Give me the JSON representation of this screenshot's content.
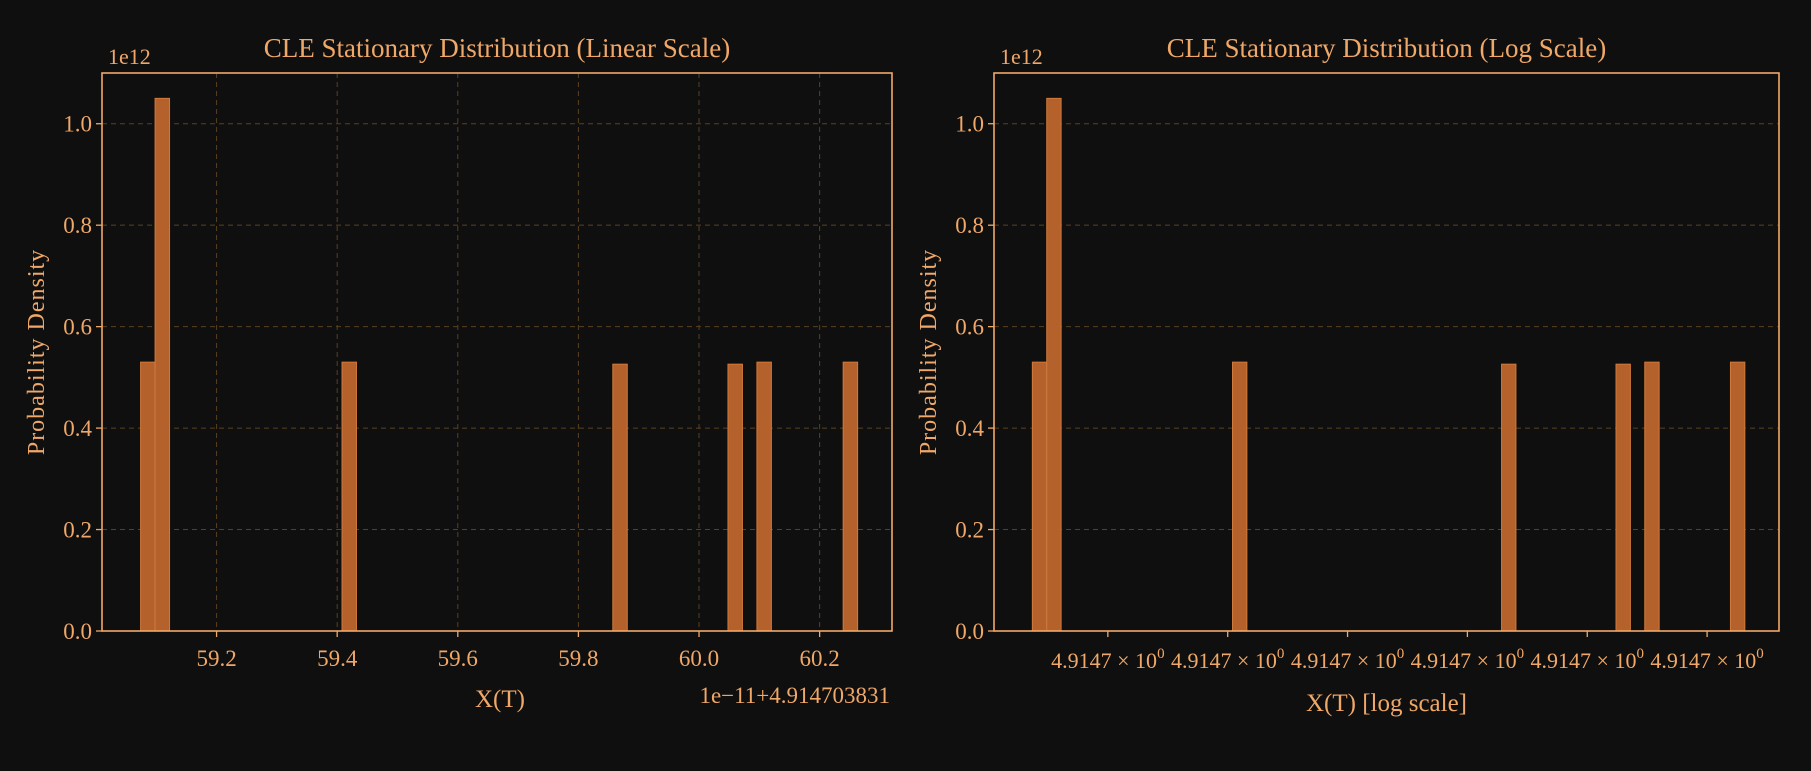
{
  "theme": {
    "background": "#0f0f0f",
    "text": "#f0a868",
    "axis": "#f0a868",
    "grid": "#5a4020",
    "bar_fill": "#b5612c",
    "bar_edge": "#cf7a3c"
  },
  "chart_data": [
    {
      "type": "bar",
      "title": "CLE Stationary Distribution (Linear Scale)",
      "xlabel": "X(T)",
      "ylabel": "Probability Density",
      "y_multiplier_label": "1e12",
      "x_offset_label": "1e−11+4.914703831",
      "xlim": [
        59.01,
        60.32
      ],
      "ylim": [
        0,
        1.1
      ],
      "x_ticks": [
        59.2,
        59.4,
        59.6,
        59.8,
        60.0,
        60.2
      ],
      "x_tick_labels": [
        "59.2",
        "59.4",
        "59.6",
        "59.8",
        "60.0",
        "60.2"
      ],
      "y_ticks": [
        0.0,
        0.2,
        0.4,
        0.6,
        0.8,
        1.0
      ],
      "y_tick_labels": [
        "0.0",
        "0.2",
        "0.4",
        "0.6",
        "0.8",
        "1.0"
      ],
      "grid": true,
      "bars": [
        {
          "x0": 59.074,
          "x1": 59.098,
          "value": 0.53
        },
        {
          "x0": 59.098,
          "x1": 59.122,
          "value": 1.05
        },
        {
          "x0": 59.408,
          "x1": 59.432,
          "value": 0.53
        },
        {
          "x0": 59.857,
          "x1": 59.881,
          "value": 0.526
        },
        {
          "x0": 60.048,
          "x1": 60.072,
          "value": 0.526
        },
        {
          "x0": 60.096,
          "x1": 60.12,
          "value": 0.53
        },
        {
          "x0": 60.239,
          "x1": 60.263,
          "value": 0.53
        }
      ]
    },
    {
      "type": "bar",
      "title": "CLE Stationary Distribution (Log Scale)",
      "xlabel": "X(T) [log scale]",
      "ylabel": "Probability Density",
      "y_multiplier_label": "1e12",
      "x_scale": "log",
      "xlim": [
        59.01,
        60.32
      ],
      "ylim": [
        0,
        1.1
      ],
      "x_ticks": [
        59.2,
        59.4,
        59.6,
        59.8,
        60.0,
        60.2
      ],
      "x_tick_labels": [
        "4.9147 × 10",
        "4.9147 × 10",
        "4.9147 × 10",
        "4.9147 × 10",
        "4.9147 × 10",
        "4.9147 × 10"
      ],
      "x_tick_exponent": "0",
      "y_ticks": [
        0.0,
        0.2,
        0.4,
        0.6,
        0.8,
        1.0
      ],
      "y_tick_labels": [
        "0.0",
        "0.2",
        "0.4",
        "0.6",
        "0.8",
        "1.0"
      ],
      "grid": "y-only",
      "bars": [
        {
          "x0": 59.074,
          "x1": 59.098,
          "value": 0.53
        },
        {
          "x0": 59.098,
          "x1": 59.122,
          "value": 1.05
        },
        {
          "x0": 59.408,
          "x1": 59.432,
          "value": 0.53
        },
        {
          "x0": 59.857,
          "x1": 59.881,
          "value": 0.526
        },
        {
          "x0": 60.048,
          "x1": 60.072,
          "value": 0.526
        },
        {
          "x0": 60.096,
          "x1": 60.12,
          "value": 0.53
        },
        {
          "x0": 60.239,
          "x1": 60.263,
          "value": 0.53
        }
      ]
    }
  ]
}
